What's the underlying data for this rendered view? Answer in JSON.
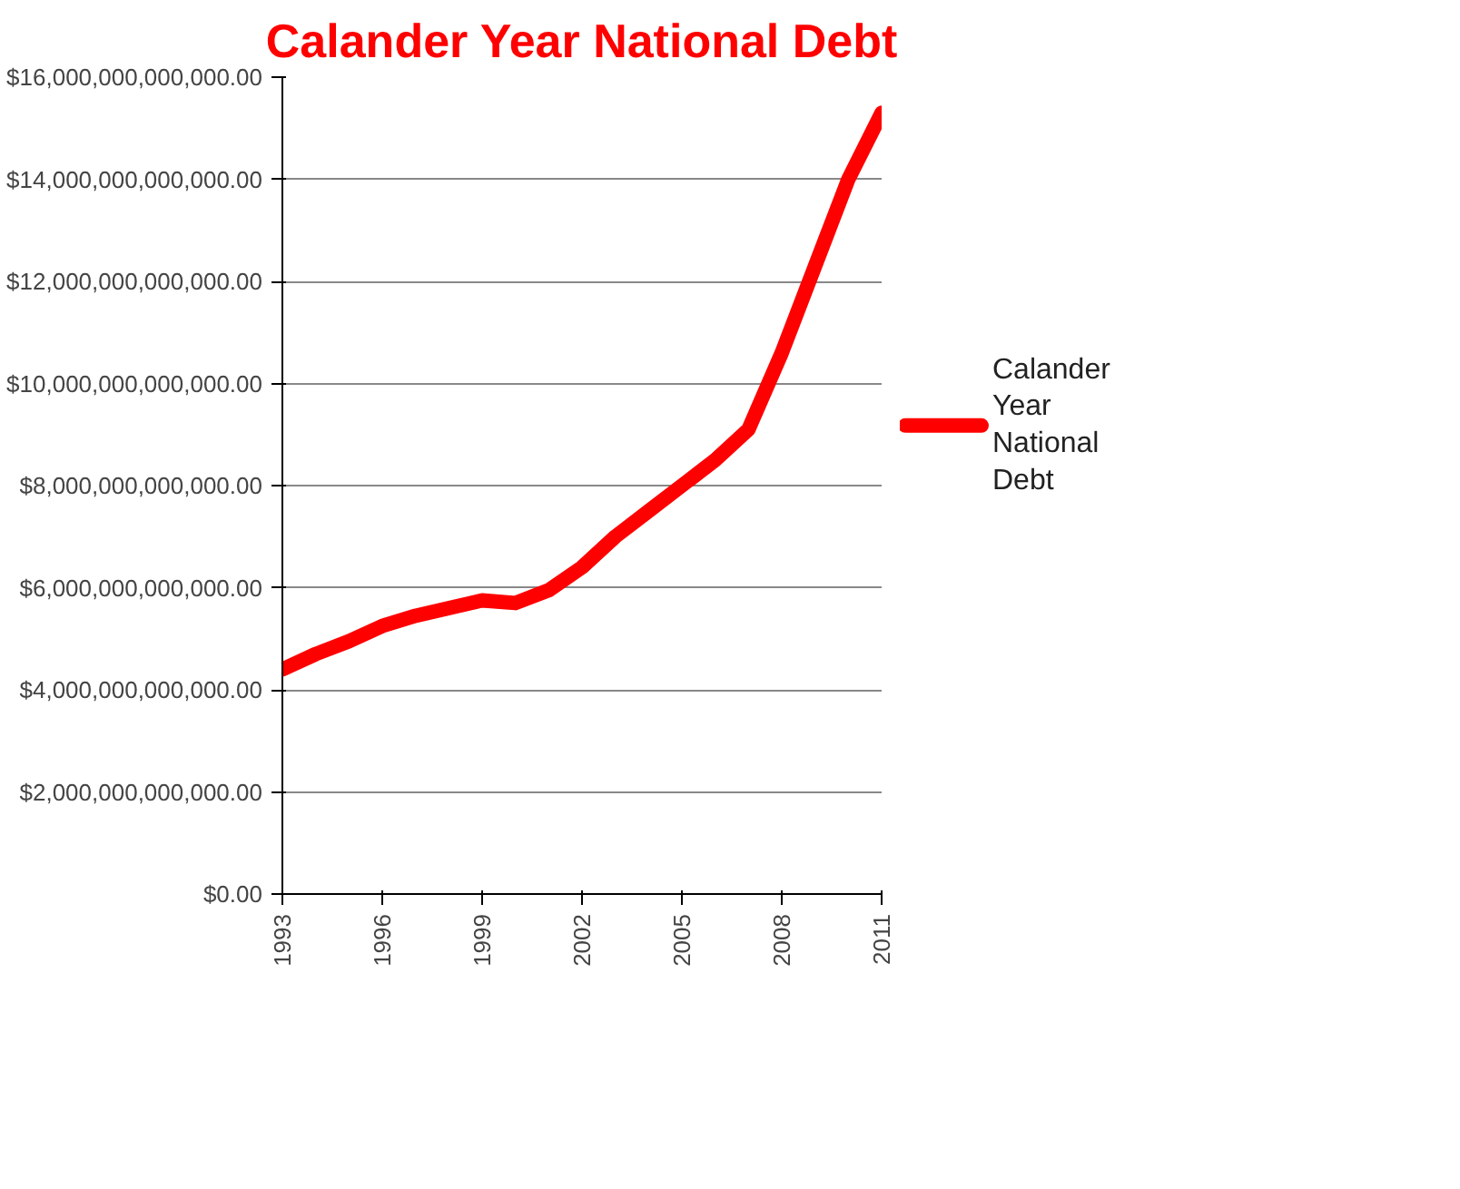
{
  "chart_data": {
    "type": "line",
    "title": "Calander Year National Debt",
    "x": [
      1993,
      1994,
      1995,
      1996,
      1997,
      1998,
      1999,
      2000,
      2001,
      2002,
      2003,
      2004,
      2005,
      2006,
      2007,
      2008,
      2009,
      2010,
      2011
    ],
    "series": [
      {
        "name": "Calander Year National Debt",
        "color": "#ff0000",
        "values": [
          4400000000000.0,
          4700000000000.0,
          4950000000000.0,
          5250000000000.0,
          5450000000000.0,
          5600000000000.0,
          5750000000000.0,
          5700000000000.0,
          5950000000000.0,
          6400000000000.0,
          7000000000000.0,
          7500000000000.0,
          8000000000000.0,
          8500000000000.0,
          9100000000000.0,
          10600000000000.0,
          12300000000000.0,
          14000000000000.0,
          15300000000000.0
        ]
      }
    ],
    "xlim": [
      1993,
      2011
    ],
    "xticks": [
      1993,
      1996,
      1999,
      2002,
      2005,
      2008,
      2011
    ],
    "ylim": [
      0,
      16000000000000
    ],
    "yticks": [
      {
        "value": 0,
        "label": "$0.00"
      },
      {
        "value": 2000000000000,
        "label": "$2,000,000,000,000.00"
      },
      {
        "value": 4000000000000,
        "label": "$4,000,000,000,000.00"
      },
      {
        "value": 6000000000000,
        "label": "$6,000,000,000,000.00"
      },
      {
        "value": 8000000000000,
        "label": "$8,000,000,000,000.00"
      },
      {
        "value": 10000000000000,
        "label": "$10,000,000,000,000.00"
      },
      {
        "value": 12000000000000,
        "label": "$12,000,000,000,000.00"
      },
      {
        "value": 14000000000000,
        "label": "$14,000,000,000,000.00"
      },
      {
        "value": 16000000000000,
        "label": "$16,000,000,000,000.00"
      }
    ],
    "grid": "y",
    "legend": "right",
    "marker": "none",
    "line_style": "solid"
  }
}
